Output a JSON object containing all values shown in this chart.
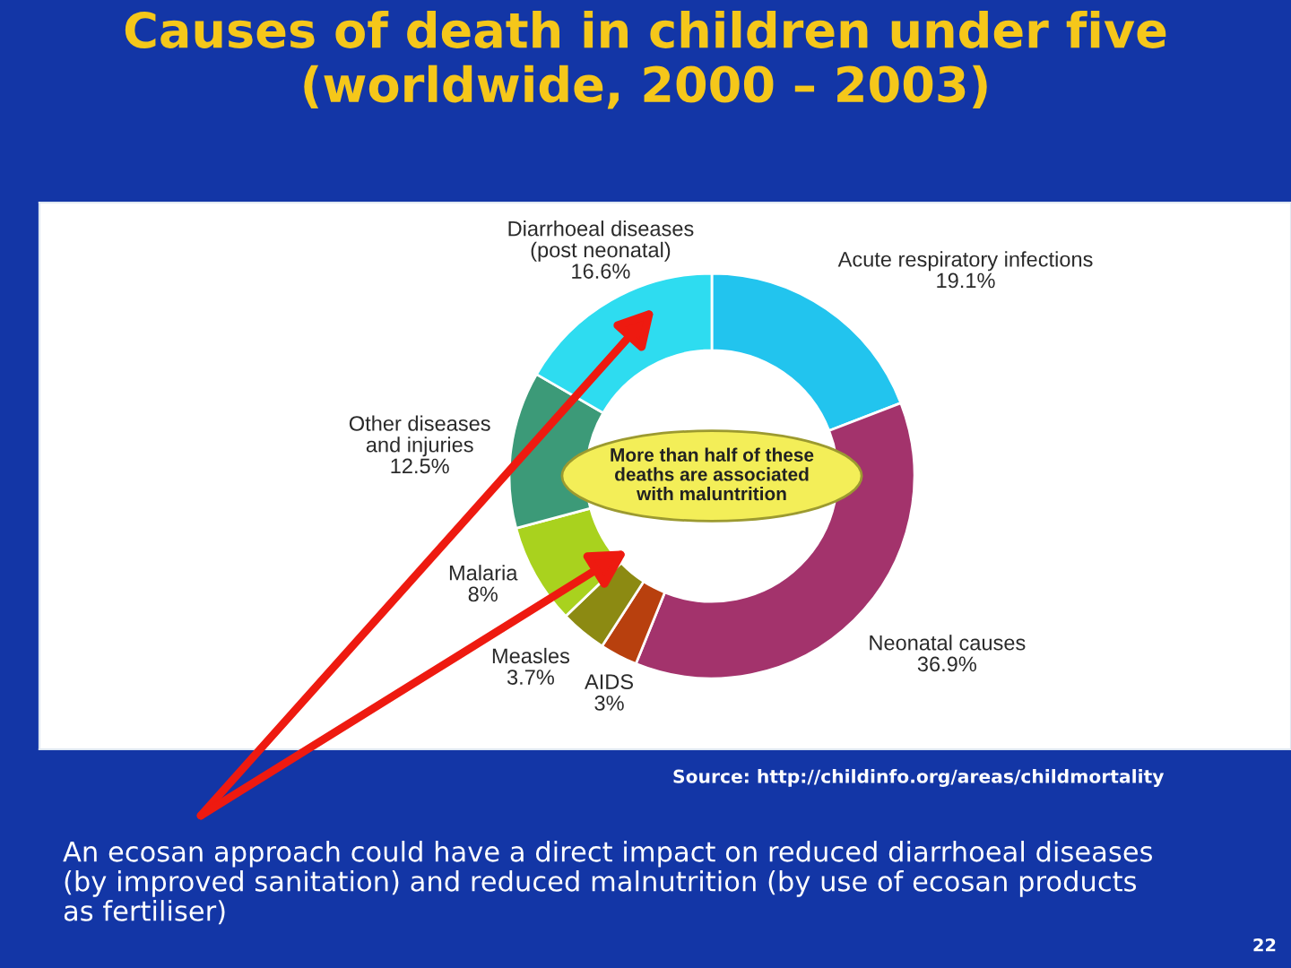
{
  "chart_data": {
    "type": "donut",
    "title": "Causes of death in children under five\n(worldwide, 2000 – 2003)",
    "categories": [
      "Acute respiratory infections",
      "Neonatal causes",
      "AIDS",
      "Measles",
      "Malaria",
      "Other diseases\nand injuries",
      "Diarrhoeal diseases\n(post neonatal)"
    ],
    "values": [
      19.1,
      36.9,
      3,
      3.7,
      8,
      12.5,
      16.6
    ],
    "value_labels": [
      "19.1%",
      "36.9%",
      "3%",
      "3.7%",
      "8%",
      "12.5%",
      "16.6%"
    ],
    "colors": [
      "#22c4ee",
      "#a3336c",
      "#b8400e",
      "#8c8a12",
      "#a9d21e",
      "#3c9a78",
      "#2edcf0"
    ],
    "annotations": [
      "More than half of these\ndeaths are associated\nwith maluntrition",
      "Source: http://childinfo.org/areas/childmortality",
      "An ecosan approach could have a direct impact on reduced diarrhoeal diseases\n(by improved sanitation) and reduced malnutrition (by use of ecosan products\nas fertiliser)",
      "22"
    ]
  }
}
